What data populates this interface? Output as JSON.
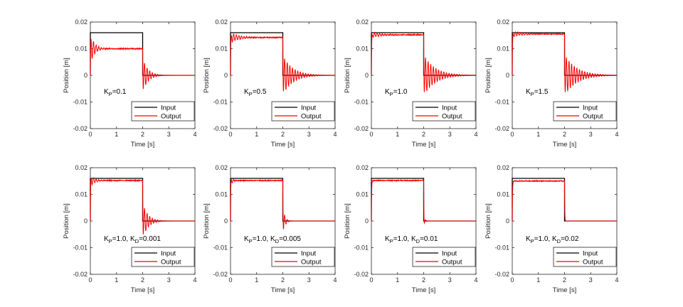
{
  "chart_data": {
    "type": "line",
    "shared": {
      "xlabel": "Time [s]",
      "ylabel": "Position [m]",
      "xlim": [
        0,
        4
      ],
      "ylim": [
        -0.02,
        0.02
      ],
      "xticks": [
        "0",
        "1",
        "2",
        "3",
        "4"
      ],
      "yticks": [
        "-0.02",
        "-0.01",
        "0",
        "0.01",
        "0.02"
      ],
      "grid": false,
      "legend_position": "bottom-right",
      "series_names": [
        "Input",
        "Output"
      ],
      "colors": {
        "Input": "#000000",
        "Output": "#ff0000",
        "axes": "#262626"
      },
      "input_series": {
        "name": "Input",
        "x": [
          0,
          0,
          2,
          2,
          4
        ],
        "y": [
          0,
          0.016,
          0.016,
          0,
          0
        ]
      }
    },
    "panels": [
      {
        "id": "p1",
        "label_parts": [
          {
            "t": "K",
            "s": "P",
            "r": "=0.1"
          }
        ],
        "output_steady_state": 0.01,
        "overshoot_peak": 0.016,
        "settling_time_s": 0.6,
        "step_down_min": -0.0065,
        "return_settling_time_s": 0.8
      },
      {
        "id": "p2",
        "label_parts": [
          {
            "t": "K",
            "s": "P",
            "r": "=0.5"
          }
        ],
        "output_steady_state": 0.0142,
        "overshoot_peak": 0.0162,
        "settling_time_s": 1.2,
        "step_down_min": -0.0075,
        "return_settling_time_s": 1.5
      },
      {
        "id": "p3",
        "label_parts": [
          {
            "t": "K",
            "s": "P",
            "r": "=1.0"
          }
        ],
        "output_steady_state": 0.0152,
        "overshoot_peak": 0.0162,
        "settling_time_s": 1.4,
        "step_down_min": -0.0078,
        "return_settling_time_s": 1.7
      },
      {
        "id": "p4",
        "label_parts": [
          {
            "t": "K",
            "s": "P",
            "r": "=1.5"
          }
        ],
        "output_steady_state": 0.0155,
        "overshoot_peak": 0.0165,
        "settling_time_s": 1.5,
        "step_down_min": -0.0078,
        "return_settling_time_s": 1.8
      },
      {
        "id": "p5",
        "label_parts": [
          {
            "t": "K",
            "s": "P",
            "r": "=1.0, "
          },
          {
            "t": "K",
            "s": "D",
            "r": "=0.001"
          }
        ],
        "output_steady_state": 0.0152,
        "overshoot_peak": 0.018,
        "settling_time_s": 0.5,
        "step_down_min": -0.0068,
        "return_settling_time_s": 0.8
      },
      {
        "id": "p6",
        "label_parts": [
          {
            "t": "K",
            "s": "P",
            "r": "=1.0, "
          },
          {
            "t": "K",
            "s": "D",
            "r": "=0.005"
          }
        ],
        "output_steady_state": 0.0152,
        "overshoot_peak": 0.0175,
        "settling_time_s": 0.25,
        "step_down_min": -0.0055,
        "return_settling_time_s": 0.3
      },
      {
        "id": "p7",
        "label_parts": [
          {
            "t": "K",
            "s": "P",
            "r": "=1.0, "
          },
          {
            "t": "K",
            "s": "D",
            "r": "=0.01"
          }
        ],
        "output_steady_state": 0.0152,
        "overshoot_peak": 0.016,
        "settling_time_s": 0.1,
        "step_down_min": -0.003,
        "return_settling_time_s": 0.15
      },
      {
        "id": "p8",
        "label_parts": [
          {
            "t": "K",
            "s": "P",
            "r": "=1.0, "
          },
          {
            "t": "K",
            "s": "D",
            "r": "=0.02"
          }
        ],
        "output_steady_state": 0.015,
        "overshoot_peak": 0.015,
        "settling_time_s": 0.05,
        "step_down_min": 0.0,
        "return_settling_time_s": 0.05
      }
    ]
  }
}
